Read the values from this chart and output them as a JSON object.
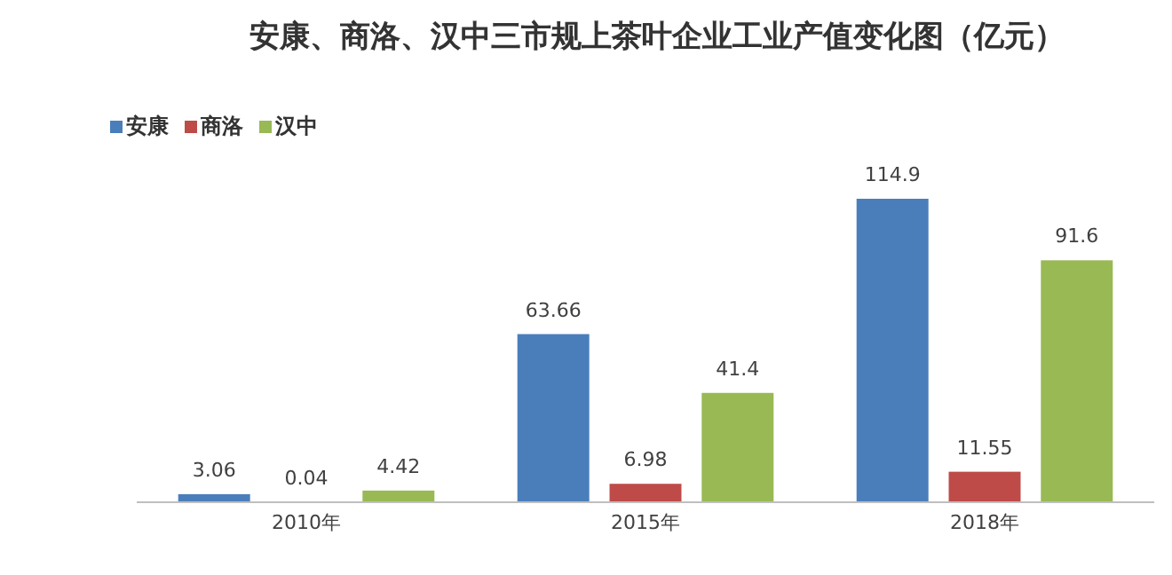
{
  "chart_data": {
    "type": "bar",
    "title": "安康、商洛、汉中三市规上茶叶企业工业产值变化图（亿元）",
    "categories": [
      "2010年",
      "2015年",
      "2018年"
    ],
    "series": [
      {
        "name": "安康",
        "color": "#4a7ebb",
        "values": [
          3.06,
          63.66,
          114.9
        ]
      },
      {
        "name": "商洛",
        "color": "#be4b48",
        "values": [
          0.04,
          6.98,
          11.55
        ]
      },
      {
        "name": "汉中",
        "color": "#98b954",
        "values": [
          4.42,
          41.4,
          91.6
        ]
      }
    ],
    "data_labels": true,
    "legend": "top left"
  }
}
